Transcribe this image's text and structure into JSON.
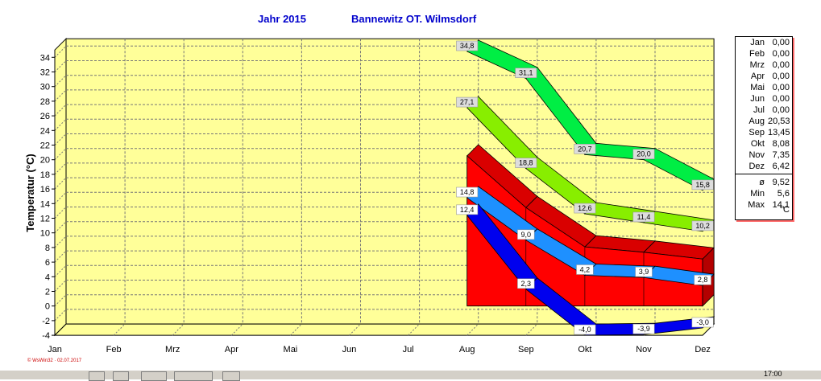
{
  "header": {
    "year": "Jahr  2015",
    "station": "Bannewitz OT. Wilmsdorf"
  },
  "chart_data": {
    "type": "area",
    "title": "Jahr  2015",
    "subtitle": "Bannewitz OT. Wilmsdorf",
    "ylabel": "Temperatur  (°C)",
    "xlabel": "",
    "ylim": [
      -4,
      35
    ],
    "yticks": [
      "34",
      "32",
      "30",
      "28",
      "26",
      "24",
      "22",
      "20",
      "18",
      "16",
      "14",
      "12",
      "10",
      "8",
      "6",
      "4",
      "2",
      "0",
      "-2",
      "-4"
    ],
    "grid": true,
    "categories": [
      "Jan",
      "Feb",
      "Mrz",
      "Apr",
      "Mai",
      "Jun",
      "Jul",
      "Aug",
      "Sep",
      "Okt",
      "Nov",
      "Dez"
    ],
    "series": [
      {
        "color": "#00ee44",
        "values": [
          null,
          null,
          null,
          null,
          null,
          null,
          null,
          34.8,
          31.1,
          20.7,
          20.0,
          15.8
        ],
        "labels": [
          "",
          "",
          "",
          "",
          "",
          "",
          "",
          "34,8",
          "31,1",
          "20,7",
          "20,0",
          "15,8"
        ]
      },
      {
        "color": "#88ee00",
        "values": [
          null,
          null,
          null,
          null,
          null,
          null,
          null,
          27.1,
          18.8,
          12.6,
          11.4,
          10.2
        ],
        "labels": [
          "",
          "",
          "",
          "",
          "",
          "",
          "",
          "27,1",
          "18,8",
          "12,6",
          "11,4",
          "10,2"
        ]
      },
      {
        "color": "#ff0000",
        "values": [
          null,
          null,
          null,
          null,
          null,
          null,
          null,
          20.53,
          13.45,
          8.08,
          7.35,
          6.42
        ],
        "labels": [
          "",
          "",
          "",
          "",
          "",
          "",
          "",
          "",
          "",
          "",
          "",
          ""
        ]
      },
      {
        "color": "#1e90ff",
        "values": [
          null,
          null,
          null,
          null,
          null,
          null,
          null,
          14.8,
          9.0,
          4.2,
          3.9,
          2.8
        ],
        "labels": [
          "",
          "",
          "",
          "",
          "",
          "",
          "",
          "14,8",
          "9,0",
          "4,2",
          "3,9",
          "2,8"
        ]
      },
      {
        "color": "#0000ee",
        "values": [
          null,
          null,
          null,
          null,
          null,
          null,
          null,
          12.4,
          2.3,
          -4.0,
          -3.9,
          -3.0
        ],
        "labels": [
          "",
          "",
          "",
          "",
          "",
          "",
          "",
          "12,4",
          "2,3",
          "-4,0",
          "-3,9",
          "-3,0"
        ]
      }
    ]
  },
  "stats": {
    "months": [
      {
        "label": "Jan",
        "value": "0,00"
      },
      {
        "label": "Feb",
        "value": "0,00"
      },
      {
        "label": "Mrz",
        "value": "0,00"
      },
      {
        "label": "Apr",
        "value": "0,00"
      },
      {
        "label": "Mai",
        "value": "0,00"
      },
      {
        "label": "Jun",
        "value": "0,00"
      },
      {
        "label": "Jul",
        "value": "0,00"
      },
      {
        "label": "Aug",
        "value": "20,53"
      },
      {
        "label": "Sep",
        "value": "13,45"
      },
      {
        "label": "Okt",
        "value": "8,08"
      },
      {
        "label": "Nov",
        "value": "7,35"
      },
      {
        "label": "Dez",
        "value": "6,42"
      }
    ],
    "summary": [
      {
        "label": "ø",
        "value": "9,52"
      },
      {
        "label": "Min",
        "value": "5,6"
      },
      {
        "label": "Max",
        "value": "14,1"
      }
    ],
    "unit": "°C"
  },
  "watermark": "© WsWin32 · 02.07.2017",
  "taskbar": {
    "clock": "17:00"
  },
  "colors": {
    "wall": "#ffff99",
    "floor": "#ffff99",
    "title": "#0000cc"
  }
}
